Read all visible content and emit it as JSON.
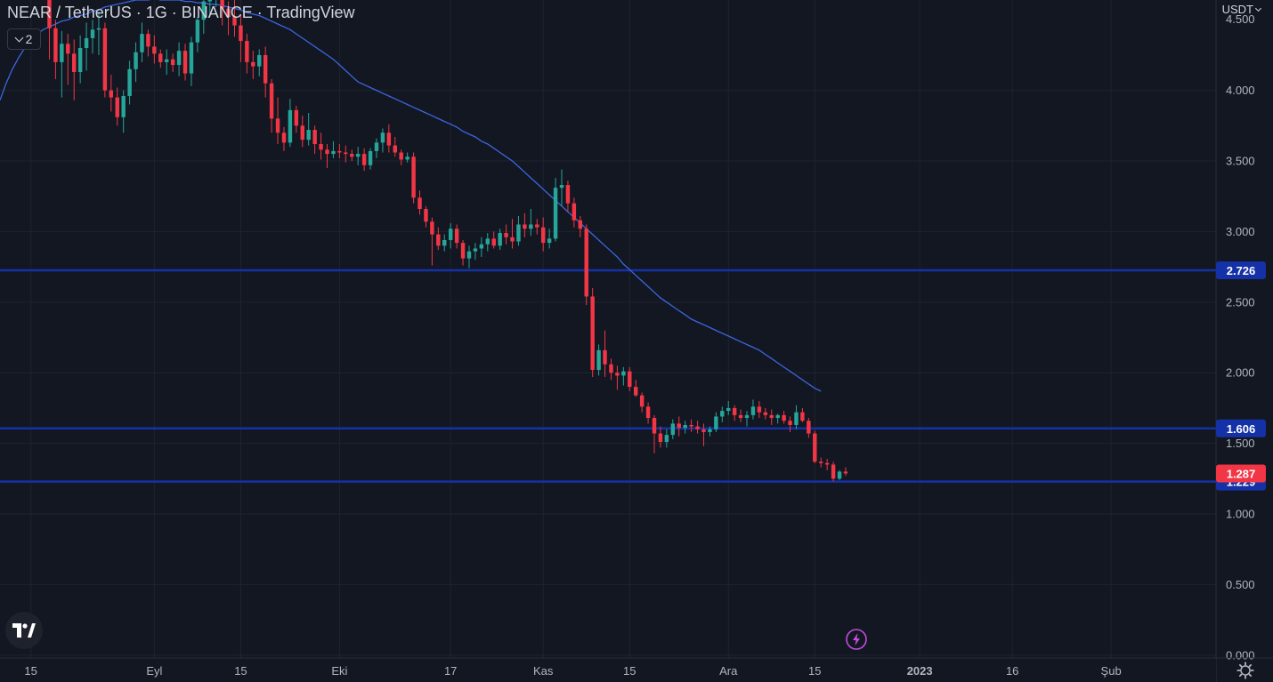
{
  "header": {
    "title": "NEAR / TetherUS · 1G · BINANCE · TradingView",
    "indicator_count": "2",
    "currency": "USDT"
  },
  "colors": {
    "background": "#131722",
    "grid": "#1f2330",
    "up": "#26a69a",
    "down": "#f23645",
    "ma_line": "#3a66e0",
    "level_line": "#1531a8",
    "axis_text": "#b2b5be"
  },
  "chart_data": {
    "type": "candlestick",
    "title": "NEAR / TetherUS · 1G · BINANCE · TradingView",
    "ylim": [
      -0.02,
      4.64
    ],
    "y_ticks": [
      0,
      0.5,
      1,
      1.5,
      2,
      2.5,
      3,
      3.5,
      4
    ],
    "y_tick_labels": [
      "0.000",
      "0.500",
      "1.000",
      "1.500",
      "2.000",
      "2.500",
      "3.000",
      "3.500",
      "4.000"
    ],
    "x_ticks": [
      {
        "label": "15",
        "slot": -3
      },
      {
        "label": "Eyl",
        "slot": 17
      },
      {
        "label": "15",
        "slot": 31
      },
      {
        "label": "Eki",
        "slot": 47
      },
      {
        "label": "17",
        "slot": 65
      },
      {
        "label": "Kas",
        "slot": 80
      },
      {
        "label": "15",
        "slot": 94
      },
      {
        "label": "Ara",
        "slot": 110
      },
      {
        "label": "15",
        "slot": 124
      },
      {
        "label": "2023",
        "slot": 141
      },
      {
        "label": "16",
        "slot": 156
      },
      {
        "label": "Şub",
        "slot": 172
      }
    ],
    "x_range": [
      -8,
      189
    ],
    "candles": [
      [
        4.66,
        4.75,
        4.22,
        4.44
      ],
      [
        4.44,
        4.5,
        4.08,
        4.2
      ],
      [
        4.2,
        4.42,
        3.95,
        4.33
      ],
      [
        4.33,
        4.4,
        4.04,
        4.26
      ],
      [
        4.26,
        4.36,
        3.93,
        4.13
      ],
      [
        4.13,
        4.39,
        4.05,
        4.3
      ],
      [
        4.3,
        4.48,
        4.14,
        4.37
      ],
      [
        4.37,
        4.5,
        4.26,
        4.43
      ],
      [
        4.43,
        4.56,
        4.25,
        4.44
      ],
      [
        4.44,
        4.48,
        3.95,
        4.0
      ],
      [
        4.0,
        4.11,
        3.85,
        3.95
      ],
      [
        3.95,
        4.02,
        3.75,
        3.81
      ],
      [
        3.81,
        4.0,
        3.7,
        3.96
      ],
      [
        3.96,
        4.21,
        3.9,
        4.15
      ],
      [
        4.15,
        4.34,
        4.06,
        4.27
      ],
      [
        4.27,
        4.48,
        4.2,
        4.4
      ],
      [
        4.4,
        4.43,
        4.24,
        4.31
      ],
      [
        4.31,
        4.39,
        4.19,
        4.26
      ],
      [
        4.26,
        4.29,
        4.16,
        4.2
      ],
      [
        4.2,
        4.29,
        4.11,
        4.22
      ],
      [
        4.22,
        4.26,
        4.13,
        4.18
      ],
      [
        4.18,
        4.34,
        4.1,
        4.28
      ],
      [
        4.28,
        4.33,
        4.07,
        4.12
      ],
      [
        4.12,
        4.38,
        4.03,
        4.34
      ],
      [
        4.34,
        4.52,
        4.27,
        4.5
      ],
      [
        4.5,
        4.66,
        4.4,
        4.63
      ],
      [
        4.63,
        4.79,
        4.52,
        4.71
      ],
      [
        4.71,
        4.89,
        4.59,
        4.82
      ],
      [
        4.82,
        4.88,
        4.46,
        4.58
      ],
      [
        4.58,
        4.63,
        4.39,
        4.52
      ],
      [
        4.52,
        4.74,
        4.38,
        4.46
      ],
      [
        4.46,
        4.54,
        4.2,
        4.35
      ],
      [
        4.35,
        4.4,
        4.12,
        4.2
      ],
      [
        4.2,
        4.28,
        4.08,
        4.17
      ],
      [
        4.17,
        4.29,
        4.1,
        4.25
      ],
      [
        4.25,
        4.31,
        3.95,
        4.05
      ],
      [
        4.05,
        4.08,
        3.7,
        3.8
      ],
      [
        3.8,
        3.95,
        3.62,
        3.7
      ],
      [
        3.7,
        3.74,
        3.57,
        3.63
      ],
      [
        3.63,
        3.94,
        3.6,
        3.86
      ],
      [
        3.86,
        3.89,
        3.7,
        3.75
      ],
      [
        3.75,
        3.82,
        3.6,
        3.65
      ],
      [
        3.65,
        3.84,
        3.61,
        3.72
      ],
      [
        3.72,
        3.75,
        3.55,
        3.62
      ],
      [
        3.62,
        3.7,
        3.51,
        3.58
      ],
      [
        3.58,
        3.62,
        3.45,
        3.55
      ],
      [
        3.55,
        3.64,
        3.52,
        3.57
      ],
      [
        3.57,
        3.62,
        3.52,
        3.56
      ],
      [
        3.56,
        3.61,
        3.49,
        3.55
      ],
      [
        3.55,
        3.58,
        3.5,
        3.53
      ],
      [
        3.53,
        3.6,
        3.47,
        3.55
      ],
      [
        3.55,
        3.59,
        3.43,
        3.47
      ],
      [
        3.47,
        3.59,
        3.44,
        3.57
      ],
      [
        3.57,
        3.66,
        3.52,
        3.63
      ],
      [
        3.63,
        3.73,
        3.56,
        3.7
      ],
      [
        3.7,
        3.76,
        3.56,
        3.61
      ],
      [
        3.61,
        3.67,
        3.53,
        3.56
      ],
      [
        3.56,
        3.58,
        3.47,
        3.51
      ],
      [
        3.51,
        3.56,
        3.49,
        3.53
      ],
      [
        3.53,
        3.56,
        3.2,
        3.24
      ],
      [
        3.24,
        3.29,
        3.12,
        3.16
      ],
      [
        3.16,
        3.18,
        3.03,
        3.07
      ],
      [
        3.07,
        3.1,
        2.76,
        2.98
      ],
      [
        2.98,
        3.03,
        2.87,
        2.9
      ],
      [
        2.9,
        2.98,
        2.86,
        2.94
      ],
      [
        2.94,
        3.06,
        2.88,
        3.02
      ],
      [
        3.02,
        3.05,
        2.88,
        2.92
      ],
      [
        2.92,
        2.94,
        2.76,
        2.81
      ],
      [
        2.81,
        2.9,
        2.74,
        2.86
      ],
      [
        2.86,
        2.92,
        2.8,
        2.88
      ],
      [
        2.88,
        2.96,
        2.82,
        2.91
      ],
      [
        2.91,
        2.99,
        2.86,
        2.95
      ],
      [
        2.95,
        3.0,
        2.88,
        2.9
      ],
      [
        2.9,
        3.02,
        2.87,
        2.99
      ],
      [
        2.99,
        3.05,
        2.91,
        2.96
      ],
      [
        2.96,
        3.09,
        2.88,
        2.93
      ],
      [
        2.93,
        3.11,
        2.9,
        3.05
      ],
      [
        3.05,
        3.13,
        2.96,
        3.02
      ],
      [
        3.02,
        3.16,
        2.97,
        3.05
      ],
      [
        3.05,
        3.09,
        2.98,
        3.03
      ],
      [
        3.03,
        3.1,
        2.86,
        2.92
      ],
      [
        2.92,
        3.02,
        2.88,
        2.95
      ],
      [
        2.95,
        3.38,
        2.93,
        3.31
      ],
      [
        3.31,
        3.44,
        3.18,
        3.33
      ],
      [
        3.33,
        3.36,
        3.14,
        3.2
      ],
      [
        3.2,
        3.24,
        3.03,
        3.08
      ],
      [
        3.08,
        3.11,
        2.96,
        3.02
      ],
      [
        3.02,
        3.05,
        2.48,
        2.54
      ],
      [
        2.54,
        2.6,
        1.97,
        2.02
      ],
      [
        2.02,
        2.2,
        1.98,
        2.16
      ],
      [
        2.16,
        2.3,
        1.97,
        2.06
      ],
      [
        2.06,
        2.1,
        1.95,
        2.0
      ],
      [
        2.0,
        2.05,
        1.88,
        1.98
      ],
      [
        1.98,
        2.04,
        1.91,
        2.01
      ],
      [
        2.01,
        2.04,
        1.87,
        1.9
      ],
      [
        1.9,
        1.95,
        1.83,
        1.84
      ],
      [
        1.84,
        1.86,
        1.72,
        1.76
      ],
      [
        1.76,
        1.79,
        1.64,
        1.68
      ],
      [
        1.68,
        1.7,
        1.43,
        1.57
      ],
      [
        1.57,
        1.62,
        1.47,
        1.51
      ],
      [
        1.51,
        1.6,
        1.47,
        1.56
      ],
      [
        1.56,
        1.67,
        1.53,
        1.64
      ],
      [
        1.64,
        1.69,
        1.55,
        1.61
      ],
      [
        1.61,
        1.66,
        1.57,
        1.63
      ],
      [
        1.63,
        1.67,
        1.58,
        1.62
      ],
      [
        1.62,
        1.66,
        1.57,
        1.6
      ],
      [
        1.6,
        1.64,
        1.48,
        1.58
      ],
      [
        1.58,
        1.62,
        1.55,
        1.6
      ],
      [
        1.6,
        1.72,
        1.58,
        1.69
      ],
      [
        1.69,
        1.76,
        1.65,
        1.73
      ],
      [
        1.73,
        1.8,
        1.7,
        1.75
      ],
      [
        1.75,
        1.77,
        1.66,
        1.7
      ],
      [
        1.7,
        1.74,
        1.65,
        1.68
      ],
      [
        1.68,
        1.73,
        1.62,
        1.7
      ],
      [
        1.7,
        1.81,
        1.67,
        1.76
      ],
      [
        1.76,
        1.8,
        1.68,
        1.72
      ],
      [
        1.72,
        1.75,
        1.67,
        1.7
      ],
      [
        1.7,
        1.74,
        1.63,
        1.68
      ],
      [
        1.68,
        1.71,
        1.64,
        1.7
      ],
      [
        1.7,
        1.73,
        1.64,
        1.66
      ],
      [
        1.66,
        1.69,
        1.58,
        1.63
      ],
      [
        1.63,
        1.77,
        1.6,
        1.72
      ],
      [
        1.72,
        1.75,
        1.65,
        1.66
      ],
      [
        1.66,
        1.68,
        1.54,
        1.57
      ],
      [
        1.57,
        1.59,
        1.36,
        1.37
      ],
      [
        1.37,
        1.4,
        1.33,
        1.36
      ],
      [
        1.36,
        1.39,
        1.31,
        1.35
      ],
      [
        1.35,
        1.37,
        1.23,
        1.25
      ],
      [
        1.25,
        1.31,
        1.24,
        1.3
      ],
      [
        1.3,
        1.33,
        1.27,
        1.287
      ]
    ],
    "ma_series": {
      "start_slot": -8,
      "values": [
        3.93,
        4.05,
        4.15,
        4.23,
        4.3,
        4.36,
        4.4,
        4.43,
        4.45,
        4.47,
        4.49,
        4.5,
        4.52,
        4.53,
        4.54,
        4.56,
        4.57,
        4.59,
        4.6,
        4.61,
        4.62,
        4.63,
        4.64,
        4.64,
        4.64,
        4.65,
        4.64,
        4.64,
        4.64,
        4.64,
        4.63,
        4.63,
        4.62,
        4.62,
        4.61,
        4.61,
        4.6,
        4.59,
        4.58,
        4.57,
        4.55,
        4.54,
        4.53,
        4.51,
        4.49,
        4.47,
        4.45,
        4.43,
        4.4,
        4.37,
        4.34,
        4.31,
        4.28,
        4.25,
        4.22,
        4.18,
        4.14,
        4.1,
        4.06,
        4.04,
        4.02,
        4.0,
        3.98,
        3.96,
        3.94,
        3.92,
        3.9,
        3.88,
        3.86,
        3.84,
        3.82,
        3.8,
        3.78,
        3.76,
        3.74,
        3.71,
        3.69,
        3.67,
        3.64,
        3.62,
        3.59,
        3.56,
        3.53,
        3.5,
        3.46,
        3.42,
        3.38,
        3.34,
        3.3,
        3.26,
        3.22,
        3.18,
        3.14,
        3.1,
        3.06,
        3.02,
        2.98,
        2.94,
        2.9,
        2.86,
        2.82,
        2.77,
        2.73,
        2.69,
        2.65,
        2.61,
        2.57,
        2.53,
        2.5,
        2.47,
        2.44,
        2.41,
        2.38,
        2.36,
        2.34,
        2.32,
        2.3,
        2.28,
        2.26,
        2.24,
        2.22,
        2.2,
        2.18,
        2.16,
        2.13,
        2.1,
        2.07,
        2.04,
        2.01,
        1.98,
        1.95,
        1.92,
        1.89,
        1.87
      ]
    },
    "levels": [
      {
        "value": 2.726,
        "label": "2.726"
      },
      {
        "value": 1.606,
        "label": "1.606"
      },
      {
        "value": 1.229,
        "label": "1.229"
      }
    ],
    "last_price": {
      "value": 1.287,
      "label": "1.287"
    },
    "top_tick_label": "4.500",
    "grid": true,
    "legend": "none"
  }
}
